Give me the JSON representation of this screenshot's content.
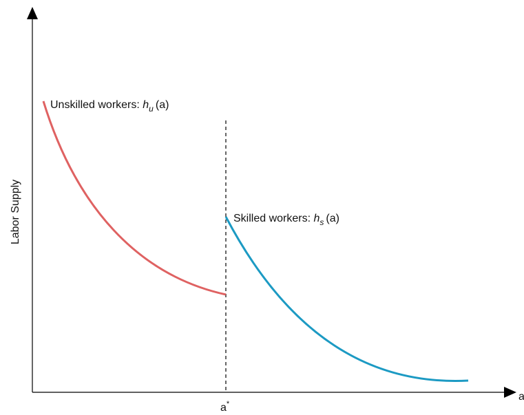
{
  "axes": {
    "y_label": "Labor Supply",
    "x_label": "a",
    "x_tick": {
      "base": "a",
      "sup": "*"
    }
  },
  "curves": [
    {
      "prefix": "Unskilled workers: ",
      "var": "h",
      "sub": "u",
      "arg": "(a)"
    },
    {
      "prefix": "Skilled workers: ",
      "var": "h",
      "sub": "s",
      "arg": "(a)"
    }
  ]
}
